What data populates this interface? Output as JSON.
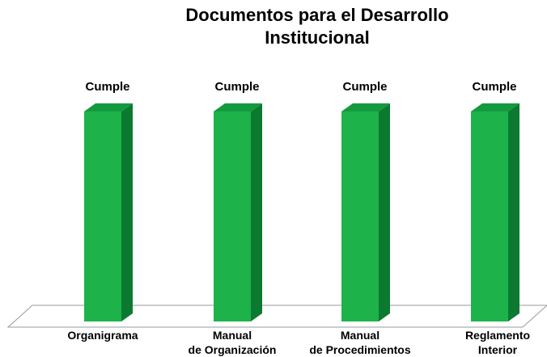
{
  "chart_data": {
    "type": "bar3d",
    "title": [
      "Documentos para el Desarrollo",
      "Institucional"
    ],
    "categories": [
      [
        "Organigrama"
      ],
      [
        "Manual",
        "de Organización"
      ],
      [
        "Manual",
        "de Procedimientos"
      ],
      [
        "Reglamento",
        "Interior"
      ]
    ],
    "values": [
      "Cumple",
      "Cumple",
      "Cumple",
      "Cumple"
    ],
    "color": "#1db34a"
  }
}
